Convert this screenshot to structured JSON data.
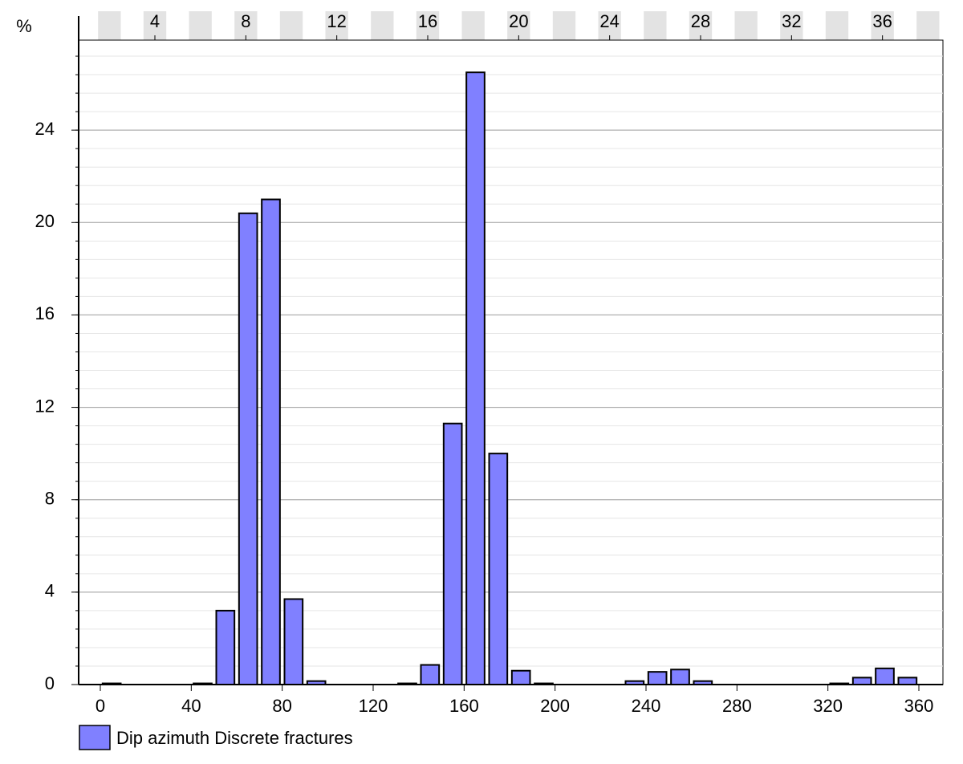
{
  "chart_data": {
    "type": "histogram",
    "y_label": "%",
    "bins": [
      0,
      10,
      20,
      30,
      40,
      50,
      60,
      70,
      80,
      90,
      100,
      110,
      120,
      130,
      140,
      150,
      160,
      170,
      180,
      190,
      200,
      210,
      220,
      230,
      240,
      250,
      260,
      270,
      280,
      290,
      300,
      310,
      320,
      330,
      340,
      350,
      360
    ],
    "series": [
      {
        "name": "Dip azimuth Discrete fractures",
        "color": "#8080ff",
        "values": [
          0.05,
          0,
          0,
          0,
          0.05,
          3.2,
          20.4,
          21.0,
          3.7,
          0.15,
          0,
          0,
          0,
          0.05,
          0.85,
          11.3,
          26.5,
          10.0,
          0.6,
          0.05,
          0,
          0,
          0,
          0.15,
          0.55,
          0.65,
          0.15,
          0,
          0,
          0,
          0,
          0,
          0.05,
          0.3,
          0.7,
          0.3
        ]
      }
    ],
    "xlim": [
      0,
      360
    ],
    "xticks": [
      0,
      40,
      80,
      120,
      160,
      200,
      240,
      280,
      320,
      360
    ],
    "x2lim": [
      1.6,
      37.6
    ],
    "x2ticks": [
      4,
      8,
      12,
      16,
      20,
      24,
      28,
      32,
      36
    ],
    "ylim": [
      0,
      28
    ],
    "yticks": [
      0,
      4,
      8,
      12,
      16,
      20,
      24
    ],
    "grid": true
  }
}
